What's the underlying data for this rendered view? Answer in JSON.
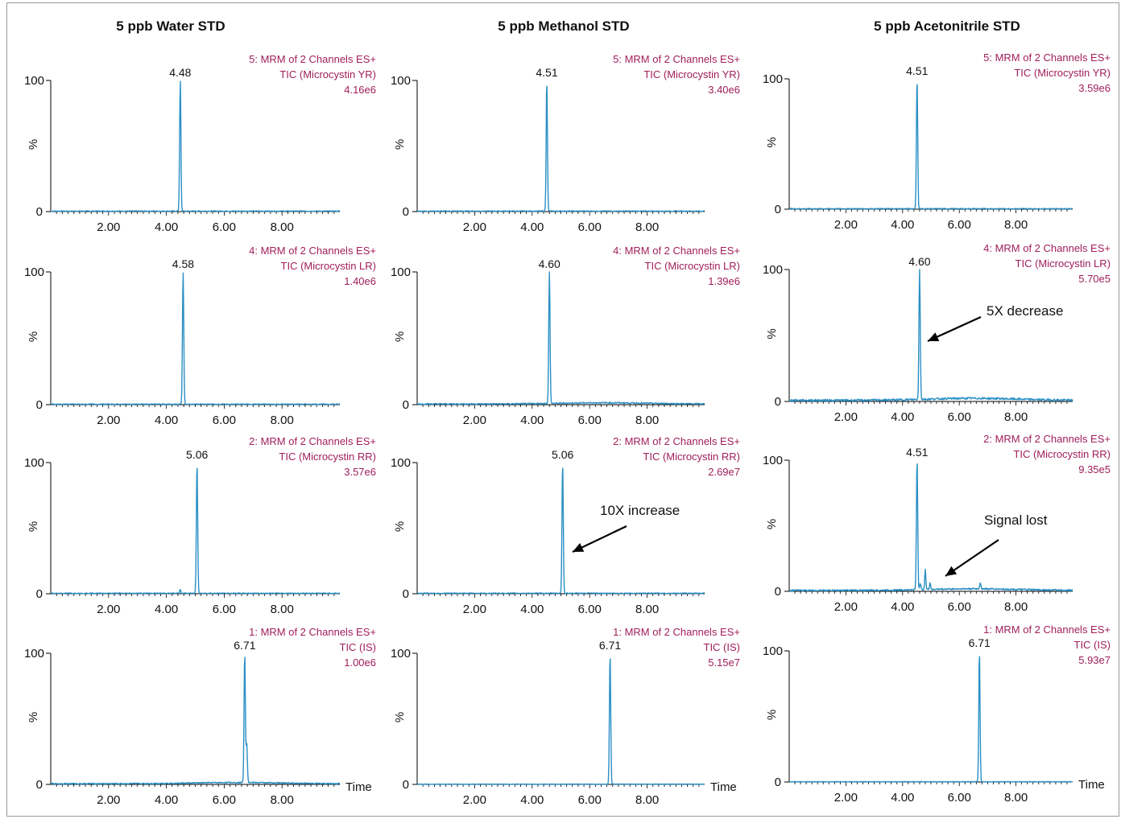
{
  "colors": {
    "trace": "#2b8fc4",
    "info": "#a01e5a",
    "axis": "#000000",
    "arrow": "#000000"
  },
  "chart_data": [
    {
      "type": "line",
      "title": "5 ppb Water STD",
      "x_unit_label": "",
      "ylim": [
        0,
        100
      ],
      "xlim": [
        0,
        10
      ],
      "x_ticks": [
        "2.00",
        "4.00",
        "6.00",
        "8.00"
      ],
      "y_ticks": [
        "0",
        "100"
      ],
      "ylabel": "%",
      "info": [
        "5: MRM of 2 Channels ES+",
        "TIC (Microcystin YR)",
        "4.16e6"
      ],
      "peaks": [
        {
          "x": 4.48,
          "y": 100,
          "label": "4.48"
        }
      ],
      "minor_peaks": [],
      "baseline": 1
    },
    {
      "type": "line",
      "title": "5 ppb Methanol STD",
      "x_unit_label": "",
      "ylim": [
        0,
        100
      ],
      "xlim": [
        0,
        10
      ],
      "x_ticks": [
        "2.00",
        "4.00",
        "6.00",
        "8.00"
      ],
      "y_ticks": [
        "0",
        "100"
      ],
      "ylabel": "%",
      "info": [
        "5: MRM of 2 Channels ES+",
        "TIC (Microcystin YR)",
        "3.40e6"
      ],
      "peaks": [
        {
          "x": 4.51,
          "y": 100,
          "label": "4.51"
        }
      ],
      "minor_peaks": [],
      "baseline": 1
    },
    {
      "type": "line",
      "title": "5 ppb Acetonitrile STD",
      "x_unit_label": "",
      "ylim": [
        0,
        100
      ],
      "xlim": [
        0,
        10
      ],
      "x_ticks": [
        "2.00",
        "4.00",
        "6.00",
        "8.00"
      ],
      "y_ticks": [
        "0",
        "100"
      ],
      "ylabel": "%",
      "info": [
        "5: MRM of 2 Channels ES+",
        "TIC (Microcystin YR)",
        "3.59e6"
      ],
      "peaks": [
        {
          "x": 4.51,
          "y": 100,
          "label": "4.51"
        }
      ],
      "minor_peaks": [],
      "baseline": 1
    },
    {
      "type": "line",
      "title": "",
      "x_unit_label": "",
      "ylim": [
        0,
        100
      ],
      "xlim": [
        0,
        10
      ],
      "x_ticks": [
        "2.00",
        "4.00",
        "6.00",
        "8.00"
      ],
      "y_ticks": [
        "0",
        "100"
      ],
      "ylabel": "%",
      "info": [
        "4: MRM of 2 Channels ES+",
        "TIC (Microcystin LR)",
        "1.40e6"
      ],
      "peaks": [
        {
          "x": 4.58,
          "y": 100,
          "label": "4.58"
        }
      ],
      "minor_peaks": [],
      "baseline": 1
    },
    {
      "type": "line",
      "title": "",
      "x_unit_label": "",
      "ylim": [
        0,
        100
      ],
      "xlim": [
        0,
        10
      ],
      "x_ticks": [
        "2.00",
        "4.00",
        "6.00",
        "8.00"
      ],
      "y_ticks": [
        "0",
        "100"
      ],
      "ylabel": "%",
      "info": [
        "4: MRM of 2 Channels ES+",
        "TIC (Microcystin LR)",
        "1.39e6"
      ],
      "peaks": [
        {
          "x": 4.6,
          "y": 100,
          "label": "4.60"
        }
      ],
      "minor_peaks": [],
      "baseline": 1.5
    },
    {
      "type": "line",
      "title": "",
      "x_unit_label": "",
      "ylim": [
        0,
        100
      ],
      "xlim": [
        0,
        10
      ],
      "x_ticks": [
        "2.00",
        "4.00",
        "6.00",
        "8.00"
      ],
      "y_ticks": [
        "0",
        "100"
      ],
      "ylabel": "%",
      "info": [
        "4: MRM of 2 Channels ES+",
        "TIC (Microcystin LR)",
        "5.70e5"
      ],
      "peaks": [
        {
          "x": 4.6,
          "y": 100,
          "label": "4.60"
        }
      ],
      "minor_peaks": [],
      "baseline": 2.5,
      "annotation": {
        "text": "5X decrease"
      }
    },
    {
      "type": "line",
      "title": "",
      "x_unit_label": "",
      "ylim": [
        0,
        100
      ],
      "xlim": [
        0,
        10
      ],
      "x_ticks": [
        "2.00",
        "4.00",
        "6.00",
        "8.00"
      ],
      "y_ticks": [
        "0",
        "100"
      ],
      "ylabel": "%",
      "info": [
        "2: MRM of 2 Channels ES+",
        "TIC (Microcystin RR)",
        "3.57e6"
      ],
      "peaks": [
        {
          "x": 5.06,
          "y": 100,
          "label": "5.06"
        }
      ],
      "minor_peaks": [
        {
          "x": 4.48,
          "y": 3
        }
      ],
      "baseline": 1
    },
    {
      "type": "line",
      "title": "",
      "x_unit_label": "",
      "ylim": [
        0,
        100
      ],
      "xlim": [
        0,
        10
      ],
      "x_ticks": [
        "2.00",
        "4.00",
        "6.00",
        "8.00"
      ],
      "y_ticks": [
        "0",
        "100"
      ],
      "ylabel": "%",
      "info": [
        "2: MRM of 2 Channels ES+",
        "TIC (Microcystin RR)",
        "2.69e7"
      ],
      "peaks": [
        {
          "x": 5.06,
          "y": 100,
          "label": "5.06"
        }
      ],
      "minor_peaks": [],
      "baseline": 1,
      "annotation": {
        "text": "10X increase"
      }
    },
    {
      "type": "line",
      "title": "",
      "x_unit_label": "",
      "ylim": [
        0,
        100
      ],
      "xlim": [
        0,
        10
      ],
      "x_ticks": [
        "2.00",
        "4.00",
        "6.00",
        "8.00"
      ],
      "y_ticks": [
        "0",
        "100"
      ],
      "ylabel": "%",
      "info": [
        "2: MRM of 2 Channels ES+",
        "TIC (Microcystin RR)",
        "9.35e5"
      ],
      "peaks": [
        {
          "x": 4.51,
          "y": 100,
          "label": "4.51"
        }
      ],
      "minor_peaks": [
        {
          "x": 4.62,
          "y": 5
        },
        {
          "x": 4.8,
          "y": 16
        },
        {
          "x": 4.97,
          "y": 5
        },
        {
          "x": 6.74,
          "y": 5
        }
      ],
      "baseline": 2,
      "annotation": {
        "text": "Signal lost"
      }
    },
    {
      "type": "line",
      "title": "",
      "x_unit_label": "Time",
      "ylim": [
        0,
        100
      ],
      "xlim": [
        0,
        10
      ],
      "x_ticks": [
        "2.00",
        "4.00",
        "6.00",
        "8.00"
      ],
      "y_ticks": [
        "0",
        "100"
      ],
      "ylabel": "%",
      "info": [
        "1: MRM of 2 Channels ES+",
        "TIC (IS)",
        "1.00e6"
      ],
      "peaks": [
        {
          "x": 6.71,
          "y": 100,
          "label": "6.71"
        },
        {
          "x": 6.78,
          "y": 30
        }
      ],
      "minor_peaks": [],
      "baseline": 1.5
    },
    {
      "type": "line",
      "title": "",
      "x_unit_label": "Time",
      "ylim": [
        0,
        100
      ],
      "xlim": [
        0,
        10
      ],
      "x_ticks": [
        "2.00",
        "4.00",
        "6.00",
        "8.00"
      ],
      "y_ticks": [
        "0",
        "100"
      ],
      "ylabel": "%",
      "info": [
        "1: MRM of 2 Channels ES+",
        "TIC (IS)",
        "5.15e7"
      ],
      "peaks": [
        {
          "x": 6.71,
          "y": 100,
          "label": "6.71"
        }
      ],
      "minor_peaks": [],
      "baseline": 0.5
    },
    {
      "type": "line",
      "title": "",
      "x_unit_label": "Time",
      "ylim": [
        0,
        100
      ],
      "xlim": [
        0,
        10
      ],
      "x_ticks": [
        "2.00",
        "4.00",
        "6.00",
        "8.00"
      ],
      "y_ticks": [
        "0",
        "100"
      ],
      "ylabel": "%",
      "info": [
        "1: MRM of 2 Channels ES+",
        "TIC (IS)",
        "5.93e7"
      ],
      "peaks": [
        {
          "x": 6.71,
          "y": 100,
          "label": "6.71"
        }
      ],
      "minor_peaks": [],
      "baseline": 0.5
    }
  ]
}
